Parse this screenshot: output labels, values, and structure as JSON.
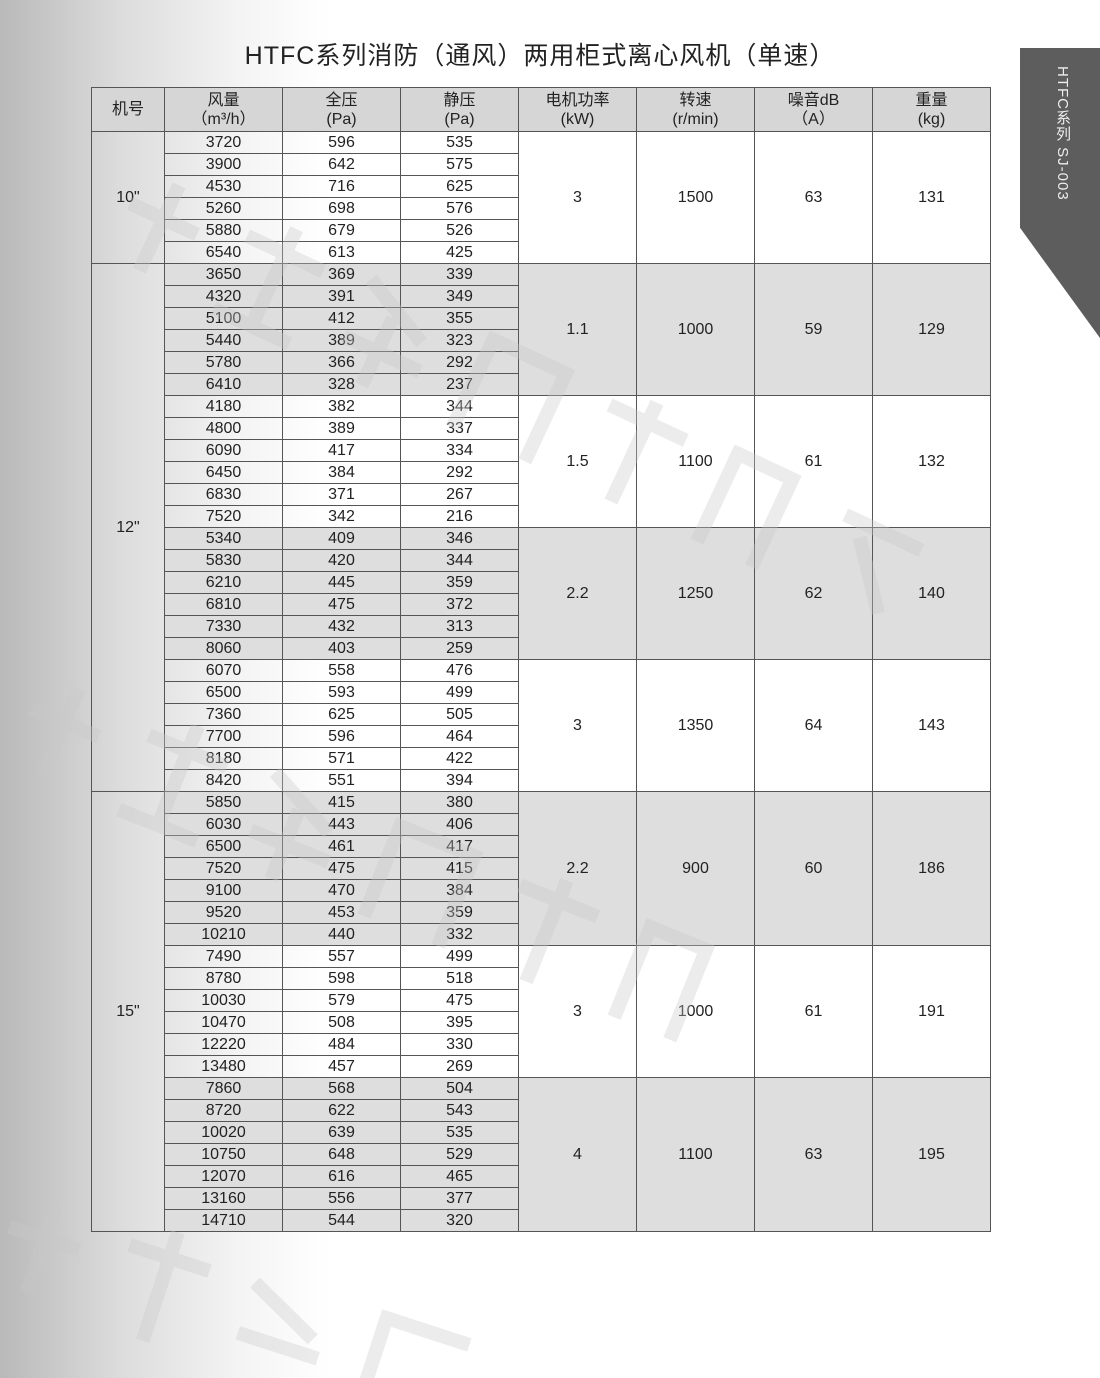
{
  "title": "HTFC系列消防（通风）两用柜式离心风机（单速）",
  "side_tab": "HTFC系列  SJ-003",
  "watermark": "浙江上建风机有限公司",
  "colors": {
    "header_bg": "#d6d6d6",
    "shade_bg": "#dedede",
    "tab_bg": "#5d5d5d"
  },
  "headers": [
    {
      "l1": "机号",
      "l2": ""
    },
    {
      "l1": "风量",
      "l2": "（m³/h）"
    },
    {
      "l1": "全压",
      "l2": "(Pa)"
    },
    {
      "l1": "静压",
      "l2": "(Pa)"
    },
    {
      "l1": "电机功率",
      "l2": "(kW)"
    },
    {
      "l1": "转速",
      "l2": "(r/min)"
    },
    {
      "l1": "噪音dB",
      "l2": "（A）"
    },
    {
      "l1": "重量",
      "l2": "(kg)"
    }
  ],
  "machines": [
    {
      "model": "10\"",
      "groups": [
        {
          "power": "3",
          "speed": "1500",
          "noise": "63",
          "weight": "131",
          "rows": [
            [
              "3720",
              "596",
              "535"
            ],
            [
              "3900",
              "642",
              "575"
            ],
            [
              "4530",
              "716",
              "625"
            ],
            [
              "5260",
              "698",
              "576"
            ],
            [
              "5880",
              "679",
              "526"
            ],
            [
              "6540",
              "613",
              "425"
            ]
          ]
        }
      ]
    },
    {
      "model": "12\"",
      "groups": [
        {
          "power": "1.1",
          "speed": "1000",
          "noise": "59",
          "weight": "129",
          "rows": [
            [
              "3650",
              "369",
              "339"
            ],
            [
              "4320",
              "391",
              "349"
            ],
            [
              "5100",
              "412",
              "355"
            ],
            [
              "5440",
              "389",
              "323"
            ],
            [
              "5780",
              "366",
              "292"
            ],
            [
              "6410",
              "328",
              "237"
            ]
          ]
        },
        {
          "power": "1.5",
          "speed": "1100",
          "noise": "61",
          "weight": "132",
          "rows": [
            [
              "4180",
              "382",
              "344"
            ],
            [
              "4800",
              "389",
              "337"
            ],
            [
              "6090",
              "417",
              "334"
            ],
            [
              "6450",
              "384",
              "292"
            ],
            [
              "6830",
              "371",
              "267"
            ],
            [
              "7520",
              "342",
              "216"
            ]
          ]
        },
        {
          "power": "2.2",
          "speed": "1250",
          "noise": "62",
          "weight": "140",
          "rows": [
            [
              "5340",
              "409",
              "346"
            ],
            [
              "5830",
              "420",
              "344"
            ],
            [
              "6210",
              "445",
              "359"
            ],
            [
              "6810",
              "475",
              "372"
            ],
            [
              "7330",
              "432",
              "313"
            ],
            [
              "8060",
              "403",
              "259"
            ]
          ]
        },
        {
          "power": "3",
          "speed": "1350",
          "noise": "64",
          "weight": "143",
          "rows": [
            [
              "6070",
              "558",
              "476"
            ],
            [
              "6500",
              "593",
              "499"
            ],
            [
              "7360",
              "625",
              "505"
            ],
            [
              "7700",
              "596",
              "464"
            ],
            [
              "8180",
              "571",
              "422"
            ],
            [
              "8420",
              "551",
              "394"
            ]
          ]
        }
      ]
    },
    {
      "model": "15\"",
      "groups": [
        {
          "power": "2.2",
          "speed": "900",
          "noise": "60",
          "weight": "186",
          "rows": [
            [
              "5850",
              "415",
              "380"
            ],
            [
              "6030",
              "443",
              "406"
            ],
            [
              "6500",
              "461",
              "417"
            ],
            [
              "7520",
              "475",
              "415"
            ],
            [
              "9100",
              "470",
              "384"
            ],
            [
              "9520",
              "453",
              "359"
            ],
            [
              "10210",
              "440",
              "332"
            ]
          ]
        },
        {
          "power": "3",
          "speed": "1000",
          "noise": "61",
          "weight": "191",
          "rows": [
            [
              "7490",
              "557",
              "499"
            ],
            [
              "8780",
              "598",
              "518"
            ],
            [
              "10030",
              "579",
              "475"
            ],
            [
              "10470",
              "508",
              "395"
            ],
            [
              "12220",
              "484",
              "330"
            ],
            [
              "13480",
              "457",
              "269"
            ]
          ]
        },
        {
          "power": "4",
          "speed": "1100",
          "noise": "63",
          "weight": "195",
          "rows": [
            [
              "7860",
              "568",
              "504"
            ],
            [
              "8720",
              "622",
              "543"
            ],
            [
              "10020",
              "639",
              "535"
            ],
            [
              "10750",
              "648",
              "529"
            ],
            [
              "12070",
              "616",
              "465"
            ],
            [
              "13160",
              "556",
              "377"
            ],
            [
              "14710",
              "544",
              "320"
            ]
          ]
        }
      ]
    }
  ]
}
